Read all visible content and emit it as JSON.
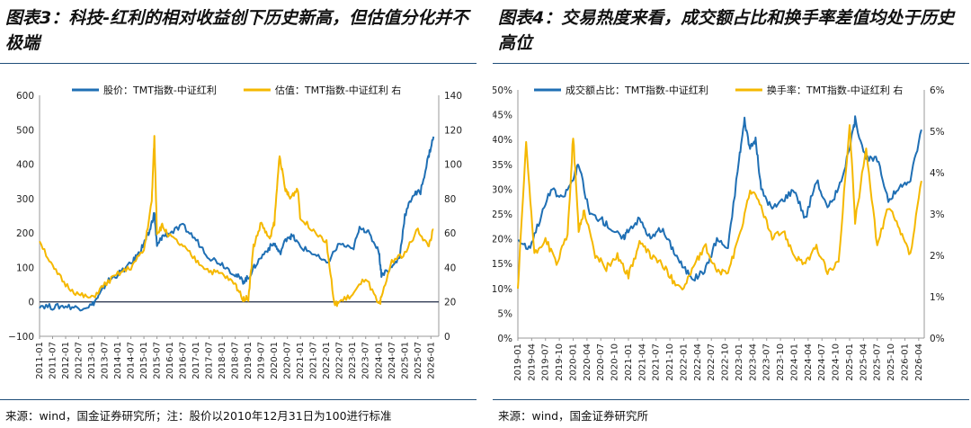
{
  "panels": {
    "left": {
      "title": "图表3：科技-红利的相对收益创下历史新高，但估值分化并不极端",
      "source": "来源：wind，国金证券研究所；注：股价以2010年12月31日为100进行标准",
      "colors": {
        "series1": "#1f6fb4",
        "series2": "#f5b800",
        "zero_line": "#1f2a44"
      },
      "chart_data": {
        "type": "line",
        "title": "",
        "xlabel": "",
        "ylabel": "",
        "x_ticks": [
          "2011-01",
          "2011-07",
          "2012-01",
          "2012-07",
          "2013-01",
          "2013-07",
          "2014-01",
          "2014-07",
          "2015-01",
          "2015-07",
          "2016-01",
          "2016-07",
          "2017-01",
          "2017-07",
          "2018-01",
          "2018-07",
          "2019-01",
          "2019-07",
          "2020-01",
          "2020-07",
          "2021-01",
          "2021-07",
          "2022-01",
          "2022-07",
          "2023-01",
          "2023-07",
          "2024-01",
          "2024-07",
          "2025-01",
          "2025-07",
          "2026-01"
        ],
        "y_left_ticks": [
          "−100",
          "0",
          "100",
          "200",
          "300",
          "400",
          "500",
          "600"
        ],
        "y_right_ticks": [
          "0",
          "20",
          "40",
          "60",
          "80",
          "100",
          "120",
          "140"
        ],
        "y_left_range": [
          -100,
          600
        ],
        "y_right_range": [
          0,
          140
        ],
        "legend_position": "top",
        "grid": false,
        "series": [
          {
            "name": "股价：TMT指数-中证红利",
            "axis": "left",
            "x": [
              2011.0,
              2011.5,
              2012.0,
              2012.5,
              2013.0,
              2013.3,
              2013.6,
              2014.0,
              2014.5,
              2014.8,
              2015.0,
              2015.2,
              2015.4,
              2015.5,
              2015.7,
              2016.0,
              2016.5,
              2017.0,
              2017.5,
              2018.0,
              2018.5,
              2018.8,
              2019.0,
              2019.3,
              2019.7,
              2020.0,
              2020.2,
              2020.5,
              2020.7,
              2021.0,
              2021.5,
              2022.0,
              2022.5,
              2023.0,
              2023.3,
              2023.6,
              2024.0,
              2024.1,
              2024.5,
              2024.8,
              2025.0,
              2025.3,
              2025.6,
              2025.9,
              2026.1
            ],
            "y": [
              -10,
              -15,
              -12,
              -18,
              -10,
              20,
              60,
              80,
              110,
              140,
              170,
              200,
              260,
              160,
              190,
              200,
              220,
              180,
              130,
              110,
              80,
              60,
              70,
              110,
              150,
              170,
              140,
              190,
              190,
              160,
              140,
              110,
              170,
              150,
              220,
              200,
              150,
              80,
              100,
              130,
              250,
              310,
              320,
              420,
              480
            ]
          },
          {
            "name": "估值：TMT指数-中证红利 右",
            "axis": "right",
            "x": [
              2011.0,
              2011.5,
              2012.0,
              2012.5,
              2013.0,
              2013.5,
              2014.0,
              2014.5,
              2015.0,
              2015.3,
              2015.4,
              2015.5,
              2015.7,
              2016.0,
              2016.5,
              2017.0,
              2017.5,
              2018.0,
              2018.5,
              2018.8,
              2019.0,
              2019.2,
              2019.5,
              2019.8,
              2020.0,
              2020.2,
              2020.4,
              2020.6,
              2020.9,
              2021.0,
              2021.5,
              2022.0,
              2022.3,
              2022.5,
              2023.0,
              2023.5,
              2024.0,
              2024.1,
              2024.5,
              2025.0,
              2025.5,
              2025.9,
              2026.1
            ],
            "y": [
              56,
              40,
              30,
              24,
              22,
              30,
              36,
              40,
              50,
              78,
              116,
              60,
              64,
              58,
              52,
              44,
              38,
              36,
              30,
              22,
              22,
              52,
              66,
              56,
              66,
              106,
              86,
              80,
              86,
              68,
              62,
              55,
              18,
              20,
              24,
              34,
              18,
              22,
              44,
              48,
              62,
              52,
              62
            ]
          }
        ]
      }
    },
    "right": {
      "title": "图表4：交易热度来看，成交额占比和换手率差值均处于历史高位",
      "source": "来源：wind，国金证券研究所",
      "colors": {
        "series1": "#1f6fb4",
        "series2": "#f5b800"
      },
      "chart_data": {
        "type": "line",
        "title": "",
        "xlabel": "",
        "ylabel": "",
        "x_ticks": [
          "2019-01",
          "2019-04",
          "2019-07",
          "2019-10",
          "2020-01",
          "2020-04",
          "2020-07",
          "2020-10",
          "2021-01",
          "2021-04",
          "2021-07",
          "2021-10",
          "2022-01",
          "2022-04",
          "2022-07",
          "2022-10",
          "2023-01",
          "2023-04",
          "2023-07",
          "2023-10",
          "2024-01",
          "2024-04",
          "2024-07",
          "2024-10",
          "2025-01",
          "2025-04",
          "2025-07",
          "2025-10",
          "2026-01",
          "2026-04"
        ],
        "y_left_ticks": [
          "0%",
          "5%",
          "10%",
          "15%",
          "20%",
          "25%",
          "30%",
          "35%",
          "40%",
          "45%",
          "50%"
        ],
        "y_right_ticks": [
          "0%",
          "1%",
          "2%",
          "3%",
          "4%",
          "5%",
          "6%"
        ],
        "y_left_range": [
          0,
          50
        ],
        "y_right_range": [
          0,
          6
        ],
        "legend_position": "top",
        "grid": false,
        "series": [
          {
            "name": "成交额占比：TMT指数-中证红利",
            "axis": "left",
            "x": [
              2019.0,
              2019.2,
              2019.4,
              2019.6,
              2019.8,
              2020.0,
              2020.1,
              2020.3,
              2020.5,
              2020.7,
              2020.9,
              2021.0,
              2021.2,
              2021.4,
              2021.6,
              2021.8,
              2022.0,
              2022.2,
              2022.4,
              2022.6,
              2022.8,
              2023.0,
              2023.1,
              2023.2,
              2023.3,
              2023.4,
              2023.6,
              2023.8,
              2024.0,
              2024.2,
              2024.4,
              2024.6,
              2024.8,
              2025.0,
              2025.1,
              2025.3,
              2025.5,
              2025.7,
              2025.9,
              2026.1,
              2026.3
            ],
            "y": [
              20,
              18,
              24,
              30,
              28,
              32,
              35,
              25,
              24,
              22,
              20,
              22,
              24,
              20,
              22,
              18,
              14,
              12,
              14,
              20,
              18,
              36,
              44,
              38,
              40,
              30,
              26,
              28,
              30,
              24,
              32,
              26,
              30,
              38,
              44,
              36,
              36,
              28,
              30,
              32,
              42
            ]
          },
          {
            "name": "换手率：TMT指数-中证红利 右",
            "axis": "right",
            "x": [
              2019.0,
              2019.15,
              2019.3,
              2019.5,
              2019.7,
              2019.9,
              2020.0,
              2020.1,
              2020.2,
              2020.4,
              2020.6,
              2020.8,
              2021.0,
              2021.2,
              2021.4,
              2021.6,
              2021.8,
              2022.0,
              2022.2,
              2022.4,
              2022.6,
              2022.8,
              2023.0,
              2023.2,
              2023.4,
              2023.6,
              2023.8,
              2024.0,
              2024.2,
              2024.4,
              2024.6,
              2024.8,
              2025.0,
              2025.1,
              2025.3,
              2025.5,
              2025.7,
              2025.9,
              2026.1,
              2026.3
            ],
            "y": [
              1.2,
              4.7,
              2.0,
              2.4,
              1.8,
              2.5,
              4.9,
              2.6,
              3.1,
              2.0,
              1.7,
              2.0,
              1.5,
              2.3,
              2.0,
              1.8,
              1.4,
              1.2,
              1.8,
              2.2,
              1.6,
              1.6,
              2.4,
              3.6,
              3.2,
              2.4,
              2.6,
              2.0,
              1.8,
              2.2,
              1.6,
              1.8,
              5.2,
              2.8,
              4.6,
              2.2,
              3.2,
              2.6,
              2.0,
              3.8
            ]
          }
        ]
      }
    }
  }
}
